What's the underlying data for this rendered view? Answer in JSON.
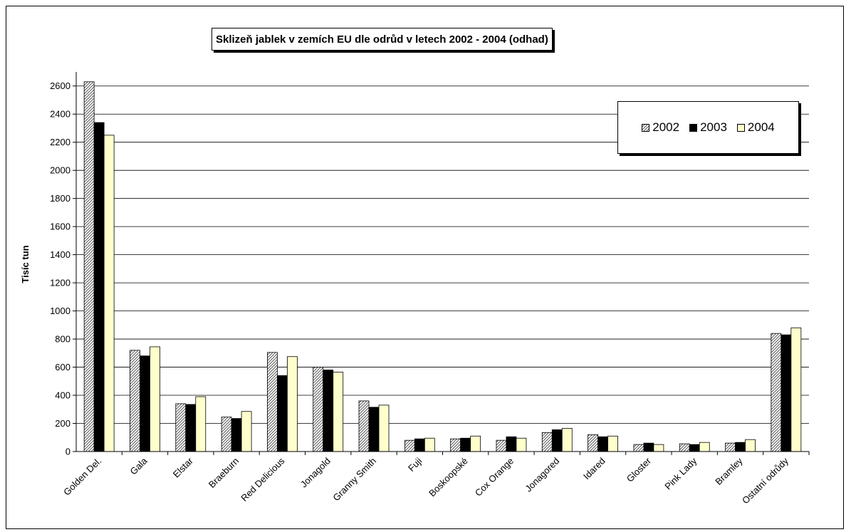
{
  "chart_data": {
    "type": "bar",
    "title": "Sklizeň jablek v zemích EU dle odrůd v letech 2002 - 2004 (odhad)",
    "xlabel": "",
    "ylabel": "Tisíc tun",
    "ylim": [
      0,
      2600
    ],
    "yticks": [
      0,
      200,
      400,
      600,
      800,
      1000,
      1200,
      1400,
      1600,
      1800,
      2000,
      2200,
      2400,
      2600
    ],
    "grid": true,
    "legend_position": "top-right",
    "categories": [
      "Golden Del.",
      "Gala",
      "Elstar",
      "Braeburn",
      "Red Delicious",
      "Jonagold",
      "Granny Smith",
      "Fuji",
      "Boskoopské",
      "Cox Orange",
      "Jonagored",
      "Idared",
      "Gloster",
      "Pink Lady",
      "Bramley",
      "Ostatní odrůdy"
    ],
    "series": [
      {
        "name": "2002",
        "color": "#ffffff",
        "pattern": "diagonal-hatch",
        "values": [
          2630,
          720,
          340,
          245,
          705,
          600,
          360,
          80,
          90,
          80,
          135,
          120,
          50,
          55,
          60,
          840
        ]
      },
      {
        "name": "2003",
        "color": "#000000",
        "values": [
          2340,
          680,
          335,
          235,
          540,
          580,
          315,
          90,
          95,
          105,
          155,
          105,
          60,
          50,
          65,
          830
        ]
      },
      {
        "name": "2004",
        "color": "#ffffcc",
        "values": [
          2250,
          745,
          390,
          285,
          675,
          565,
          330,
          95,
          110,
          95,
          165,
          110,
          50,
          65,
          85,
          880
        ]
      }
    ]
  }
}
